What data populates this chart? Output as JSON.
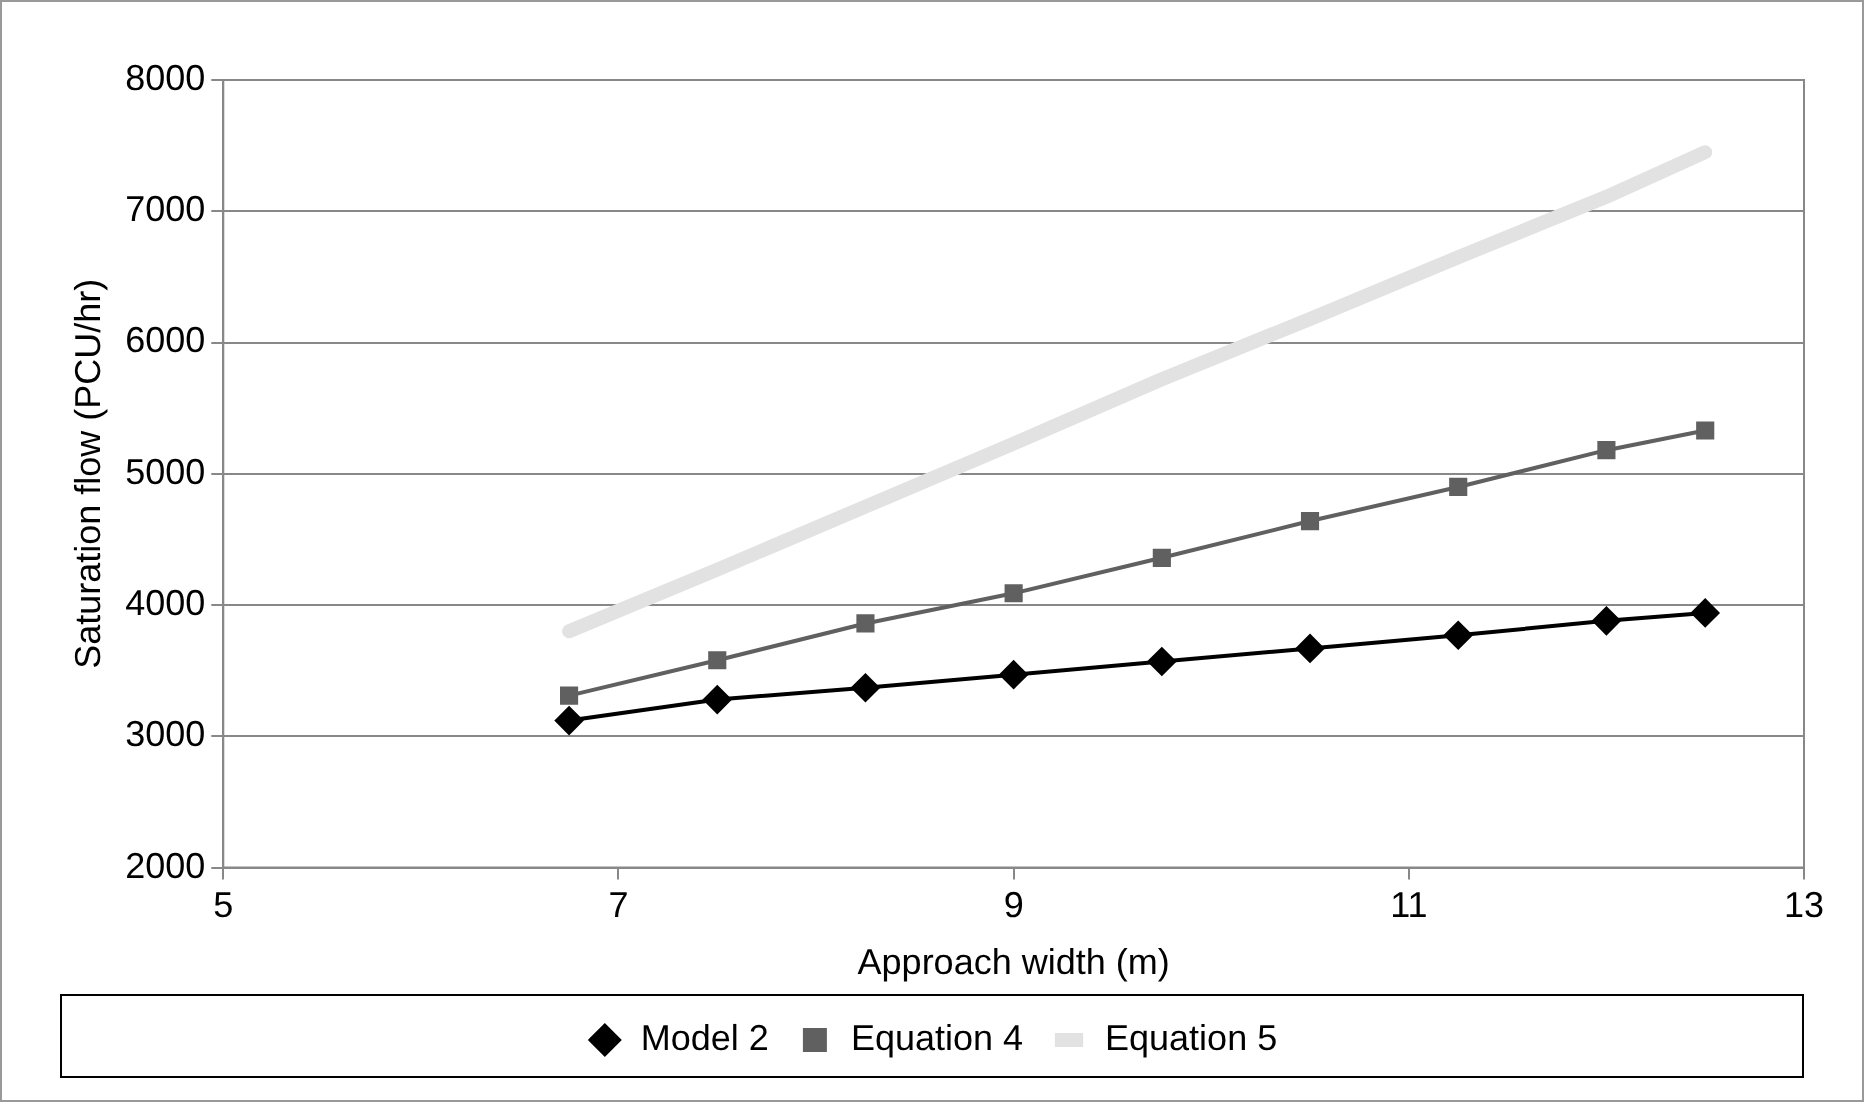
{
  "chart_data": {
    "type": "line",
    "xlabel": "Approach width (m)",
    "ylabel": "Saturation flow (PCU/hr)",
    "x": [
      6.75,
      7.5,
      8.25,
      9,
      9.75,
      10.5,
      11.25,
      12,
      12.5
    ],
    "series": [
      {
        "name": "Model 2",
        "color": "#000000",
        "marker": "diamond",
        "values": [
          3120,
          3280,
          3370,
          3470,
          3570,
          3670,
          3770,
          3880,
          3940
        ]
      },
      {
        "name": "Equation 4",
        "color": "#606060",
        "marker": "square",
        "values": [
          3310,
          3580,
          3860,
          4090,
          4360,
          4640,
          4900,
          5180,
          5330
        ]
      },
      {
        "name": "Equation 5",
        "color": "#e2e2e2",
        "marker": "none",
        "values": [
          3800,
          4270,
          4750,
          5230,
          5720,
          6180,
          6650,
          7110,
          7450
        ]
      }
    ],
    "xlim": [
      5,
      13
    ],
    "xticks": [
      5,
      7,
      9,
      11,
      13
    ],
    "ylim": [
      2000,
      8000
    ],
    "yticks": [
      2000,
      3000,
      4000,
      5000,
      6000,
      7000,
      8000
    ],
    "grid": "y",
    "legend": "bottom"
  }
}
